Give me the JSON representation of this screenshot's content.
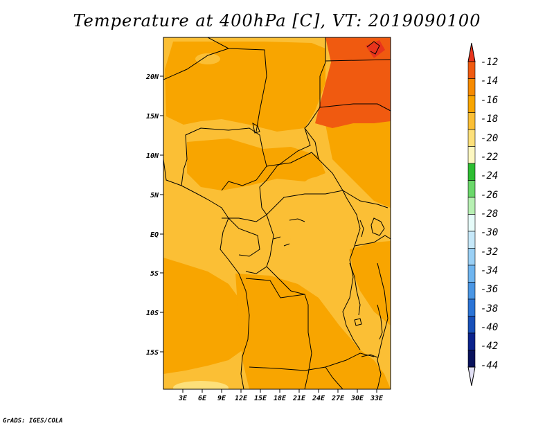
{
  "map": {
    "title": "Temperature at 400hPa [C], VT: 2019090100",
    "credit": "GrADS: IGES/COLA",
    "lat_ticks": [
      "20N",
      "15N",
      "10N",
      "5N",
      "EQ",
      "5S",
      "10S",
      "15S"
    ],
    "lon_ticks": [
      "3E",
      "6E",
      "9E",
      "12E",
      "15E",
      "18E",
      "21E",
      "24E",
      "27E",
      "30E",
      "33E"
    ],
    "colorbar": {
      "labels": [
        "-12",
        "-14",
        "-16",
        "-18",
        "-20",
        "-22",
        "-24",
        "-26",
        "-28",
        "-30",
        "-32",
        "-34",
        "-36",
        "-38",
        "-40",
        "-42",
        "-44"
      ],
      "colors": [
        "#f05a10",
        "#f68a00",
        "#f8a500",
        "#fbbf35",
        "#fde07a",
        "#fdf7c1",
        "#2dbd32",
        "#6ad86a",
        "#b7f0b3",
        "#e6fbf9",
        "#c6e8f9",
        "#9ad0f5",
        "#6fb5ef",
        "#4a96e4",
        "#2b74d6",
        "#1850b9",
        "#0b238c",
        "#09125c"
      ],
      "top_color": "#e8341c",
      "bottom_color": "#e2e0f5"
    }
  }
}
